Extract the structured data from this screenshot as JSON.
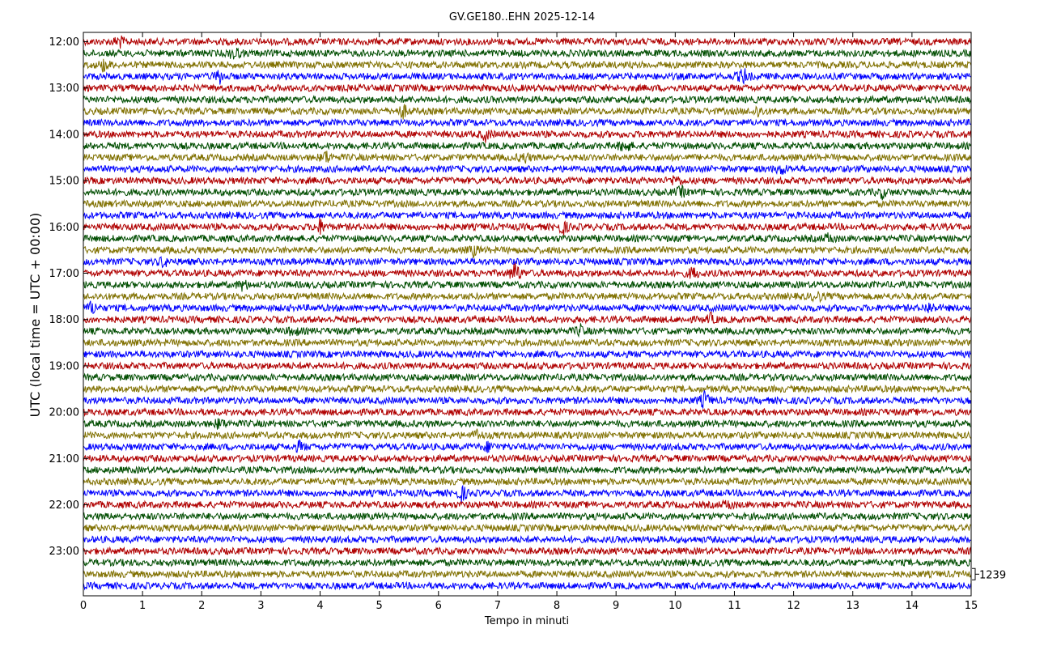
{
  "chart_data": {
    "type": "line",
    "subtype": "helicorder",
    "title": "GV.GE180..EHN 2025-12-14",
    "xlabel": "Tempo in minuti",
    "ylabel": "UTC (local time = UTC + 00:00)",
    "xlim": [
      0,
      15
    ],
    "x_ticks": [
      0,
      1,
      2,
      3,
      4,
      5,
      6,
      7,
      8,
      9,
      10,
      11,
      12,
      13,
      14,
      15
    ],
    "x_tick_labels": [
      "0",
      "1",
      "2",
      "3",
      "4",
      "5",
      "6",
      "7",
      "8",
      "9",
      "10",
      "11",
      "12",
      "13",
      "14",
      "15"
    ],
    "y_tick_labels": [
      "12:00",
      "13:00",
      "14:00",
      "15:00",
      "16:00",
      "17:00",
      "18:00",
      "19:00",
      "20:00",
      "21:00",
      "22:00",
      "23:00"
    ],
    "traces_per_hour": 4,
    "trace_count": 48,
    "trace_colors": [
      "#b00000",
      "#004d00",
      "#807000",
      "#0000ff"
    ],
    "scale_label": "1239",
    "grid": false,
    "events": [
      {
        "trace": 0,
        "minute": 0.6,
        "amp": 2.0
      },
      {
        "trace": 1,
        "minute": 2.55,
        "amp": 2.2
      },
      {
        "trace": 2,
        "minute": 0.35,
        "amp": 1.8
      },
      {
        "trace": 3,
        "minute": 2.3,
        "amp": 2.0
      },
      {
        "trace": 3,
        "minute": 11.15,
        "amp": 2.5
      },
      {
        "trace": 6,
        "minute": 5.4,
        "amp": 2.0
      },
      {
        "trace": 6,
        "minute": 11.4,
        "amp": 1.6
      },
      {
        "trace": 8,
        "minute": 6.8,
        "amp": 1.8
      },
      {
        "trace": 9,
        "minute": 9.15,
        "amp": 2.2
      },
      {
        "trace": 10,
        "minute": 4.1,
        "amp": 1.8
      },
      {
        "trace": 10,
        "minute": 7.45,
        "amp": 1.6
      },
      {
        "trace": 11,
        "minute": 11.8,
        "amp": 1.4
      },
      {
        "trace": 12,
        "minute": 10.0,
        "amp": 1.6
      },
      {
        "trace": 13,
        "minute": 10.1,
        "amp": 1.6
      },
      {
        "trace": 13,
        "minute": 13.5,
        "amp": 1.5
      },
      {
        "trace": 16,
        "minute": 4.0,
        "amp": 2.0
      },
      {
        "trace": 16,
        "minute": 8.1,
        "amp": 2.2
      },
      {
        "trace": 17,
        "minute": 12.6,
        "amp": 1.4
      },
      {
        "trace": 18,
        "minute": 6.6,
        "amp": 1.5
      },
      {
        "trace": 19,
        "minute": 1.35,
        "amp": 1.5
      },
      {
        "trace": 20,
        "minute": 7.3,
        "amp": 3.5
      },
      {
        "trace": 20,
        "minute": 10.3,
        "amp": 1.8
      },
      {
        "trace": 21,
        "minute": 2.7,
        "amp": 1.6
      },
      {
        "trace": 22,
        "minute": 12.4,
        "amp": 1.6
      },
      {
        "trace": 23,
        "minute": 0.15,
        "amp": 2.0
      },
      {
        "trace": 23,
        "minute": 14.3,
        "amp": 1.6
      },
      {
        "trace": 24,
        "minute": 10.6,
        "amp": 1.4
      },
      {
        "trace": 25,
        "minute": 3.55,
        "amp": 1.5
      },
      {
        "trace": 25,
        "minute": 8.4,
        "amp": 1.4
      },
      {
        "trace": 31,
        "minute": 10.5,
        "amp": 2.5
      },
      {
        "trace": 33,
        "minute": 2.3,
        "amp": 1.5
      },
      {
        "trace": 34,
        "minute": 6.65,
        "amp": 1.4
      },
      {
        "trace": 35,
        "minute": 3.65,
        "amp": 1.4
      },
      {
        "trace": 35,
        "minute": 6.85,
        "amp": 1.4
      },
      {
        "trace": 39,
        "minute": 6.4,
        "amp": 2.2
      },
      {
        "trace": 40,
        "minute": 10.9,
        "amp": 1.2
      }
    ]
  }
}
